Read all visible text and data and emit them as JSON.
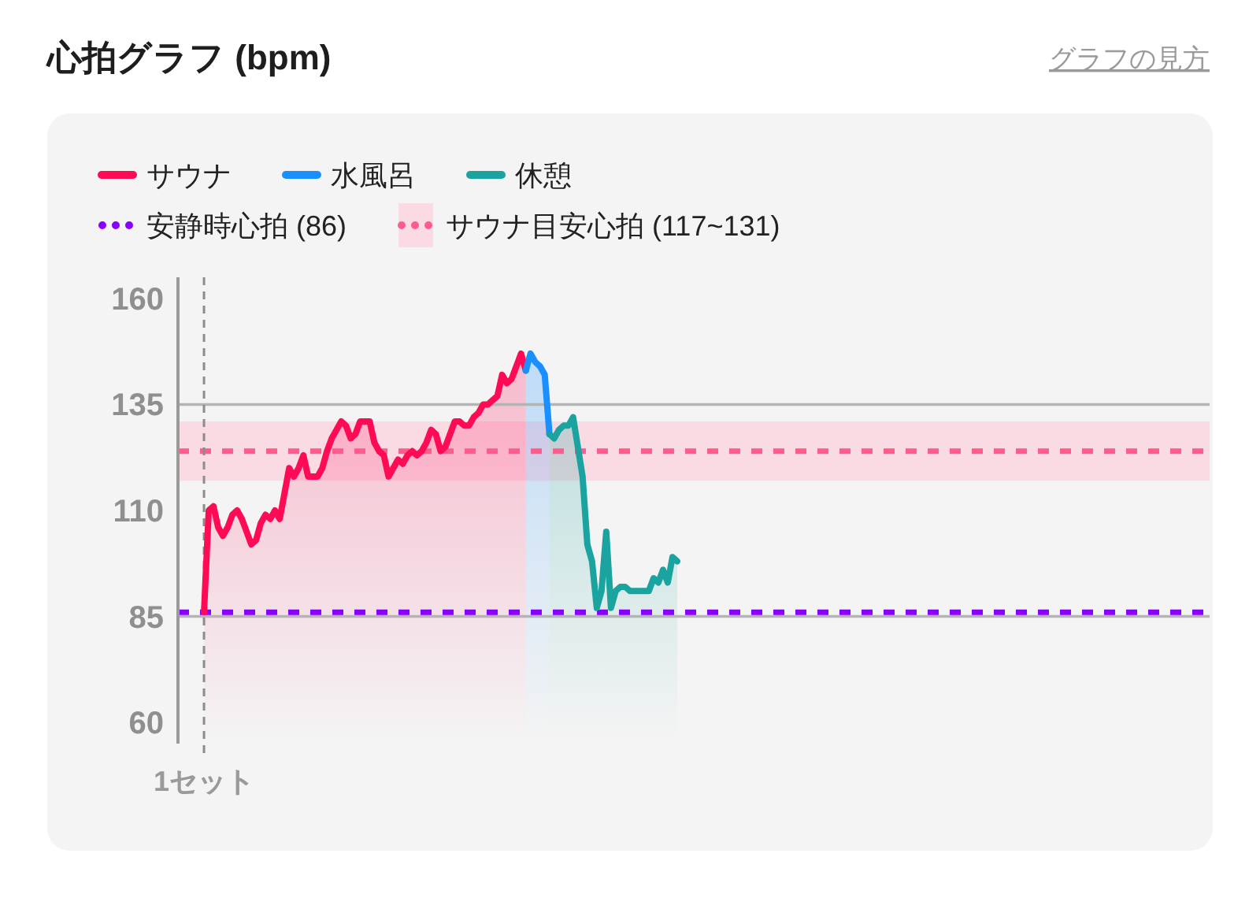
{
  "chart_data": {
    "type": "area",
    "title": "心拍グラフ (bpm)",
    "annotations": [
      "グラフの見方"
    ],
    "categories": [
      null,
      null,
      null,
      null,
      null,
      "1セット",
      null,
      null,
      null,
      null,
      null,
      null,
      null,
      null,
      null,
      null,
      null,
      null,
      null,
      null,
      null,
      null,
      null,
      null,
      null,
      null,
      null,
      null,
      null,
      null,
      null,
      null,
      null,
      null,
      null,
      null,
      null,
      null,
      null,
      null,
      null,
      null,
      null,
      null,
      null,
      null,
      null,
      null,
      null,
      null,
      null,
      null,
      null,
      null,
      null,
      null,
      null,
      null,
      null,
      null,
      null,
      null,
      null,
      null,
      null,
      null,
      null,
      null,
      null,
      null,
      null,
      null,
      null,
      null,
      null,
      null,
      null,
      null,
      null,
      null,
      null,
      null,
      null,
      null,
      null,
      null,
      null,
      null,
      null,
      null,
      null,
      null,
      null,
      null,
      null,
      null,
      null,
      null,
      null,
      null,
      null,
      null,
      null,
      null,
      null,
      null,
      null,
      null,
      null,
      null,
      null,
      null,
      null,
      null,
      null,
      null,
      null,
      null,
      null,
      null,
      null,
      null,
      null,
      null,
      null,
      null,
      null,
      null,
      null,
      null,
      null,
      null,
      null,
      null,
      null,
      null,
      null,
      null,
      null,
      null,
      null,
      null,
      null,
      null,
      null,
      null,
      null,
      null,
      null,
      null,
      null,
      null,
      null,
      null,
      null,
      null,
      null,
      null,
      null,
      null,
      null,
      null,
      null,
      null,
      null,
      null,
      null,
      null,
      null,
      null,
      null,
      null,
      null,
      null,
      null,
      null,
      null,
      null,
      null,
      null,
      null,
      null,
      null,
      null,
      null,
      null,
      null,
      null,
      null,
      null,
      null,
      null,
      null,
      null,
      null,
      null,
      null,
      null,
      null,
      null,
      null,
      null,
      null,
      null,
      null,
      null,
      null,
      null,
      null,
      null,
      null,
      null,
      null,
      null,
      null,
      null,
      null,
      null
    ],
    "series": [
      {
        "name": "サウナ",
        "color": "#ff0a55",
        "values": [
          null,
          null,
          null,
          null,
          null,
          86,
          110,
          111,
          106,
          104,
          106,
          109,
          110,
          108,
          105,
          102,
          103,
          107,
          109,
          108,
          110,
          108,
          114,
          120,
          118,
          120,
          123,
          118,
          118,
          118,
          120,
          124,
          127,
          129,
          131,
          130,
          127,
          128,
          131,
          131,
          131,
          126,
          124,
          123,
          118,
          120,
          122,
          121,
          123,
          124,
          123,
          124,
          126,
          129,
          128,
          124,
          125,
          128,
          131,
          131,
          130,
          130,
          132,
          133,
          135,
          135,
          136,
          137,
          142,
          140,
          141,
          144,
          147,
          143,
          null,
          null,
          null,
          null,
          null,
          null,
          null,
          null,
          null,
          null,
          null,
          null,
          null,
          null,
          null,
          null,
          null,
          null,
          null,
          null,
          null,
          null,
          null,
          null,
          null,
          null,
          null,
          null,
          null,
          null,
          null,
          null,
          null,
          null,
          null,
          null,
          null,
          null,
          null,
          null,
          null,
          null,
          null,
          null,
          null,
          null,
          null,
          null,
          null,
          null,
          null,
          null,
          null,
          null,
          null,
          null,
          null,
          null,
          null,
          null,
          null,
          null,
          null,
          null,
          null,
          null,
          null,
          null,
          null,
          null,
          null,
          null,
          null,
          null,
          null,
          null,
          null,
          null,
          null,
          null,
          null,
          null,
          null,
          null,
          null,
          null,
          null,
          null,
          null,
          null,
          null,
          null,
          null,
          null,
          null,
          null,
          null,
          null,
          null,
          null,
          null,
          null,
          null,
          null,
          null,
          null,
          null,
          null,
          null,
          null,
          null,
          null,
          null,
          null,
          null,
          null,
          null,
          null,
          null,
          null,
          null,
          null,
          null,
          null,
          null,
          null,
          null,
          null,
          null,
          null,
          null,
          null,
          null,
          null,
          null,
          null,
          null,
          null,
          null,
          null,
          null,
          null,
          null,
          null
        ]
      },
      {
        "name": "水風呂",
        "color": "#1a8fff",
        "values": [
          null,
          null,
          null,
          null,
          null,
          null,
          null,
          null,
          null,
          null,
          null,
          null,
          null,
          null,
          null,
          null,
          null,
          null,
          null,
          null,
          null,
          null,
          null,
          null,
          null,
          null,
          null,
          null,
          null,
          null,
          null,
          null,
          null,
          null,
          null,
          null,
          null,
          null,
          null,
          null,
          null,
          null,
          null,
          null,
          null,
          null,
          null,
          null,
          null,
          null,
          null,
          null,
          null,
          null,
          null,
          null,
          null,
          null,
          null,
          null,
          null,
          null,
          null,
          null,
          null,
          null,
          null,
          null,
          null,
          null,
          null,
          null,
          null,
          143,
          147,
          145,
          144,
          142,
          128,
          null,
          null,
          null,
          null,
          null,
          null,
          null,
          null,
          null,
          null,
          null,
          null,
          null,
          null,
          null,
          null,
          null,
          null,
          null,
          null,
          null,
          null,
          null,
          null,
          null,
          null,
          null,
          null,
          null,
          null,
          null,
          null,
          null,
          null,
          null,
          null,
          null,
          null,
          null,
          null,
          null,
          null,
          null,
          null,
          null,
          null,
          null,
          null,
          null,
          null,
          null,
          null,
          null,
          null,
          null,
          null,
          null,
          null,
          null,
          null,
          null,
          null,
          null,
          null,
          null,
          null,
          null,
          null,
          null,
          null,
          null,
          null,
          null,
          null,
          null,
          null,
          null,
          null,
          null,
          null,
          null,
          null,
          null,
          null,
          null,
          null,
          null,
          null,
          null,
          null,
          null,
          null,
          null,
          null,
          null,
          null,
          null,
          null,
          null,
          null,
          null,
          null,
          null,
          null,
          null,
          null,
          null,
          null,
          null,
          null,
          null,
          null,
          null,
          null,
          null,
          null,
          null,
          null,
          null,
          null,
          null,
          null,
          null,
          null,
          null,
          null,
          null,
          null,
          null,
          null,
          null,
          null,
          null,
          null,
          null,
          null,
          null,
          null,
          null
        ]
      },
      {
        "name": "休憩",
        "color": "#1aa39f",
        "values": [
          null,
          null,
          null,
          null,
          null,
          null,
          null,
          null,
          null,
          null,
          null,
          null,
          null,
          null,
          null,
          null,
          null,
          null,
          null,
          null,
          null,
          null,
          null,
          null,
          null,
          null,
          null,
          null,
          null,
          null,
          null,
          null,
          null,
          null,
          null,
          null,
          null,
          null,
          null,
          null,
          null,
          null,
          null,
          null,
          null,
          null,
          null,
          null,
          null,
          null,
          null,
          null,
          null,
          null,
          null,
          null,
          null,
          null,
          null,
          null,
          null,
          null,
          null,
          null,
          null,
          null,
          null,
          null,
          null,
          null,
          null,
          null,
          null,
          null,
          null,
          null,
          null,
          null,
          128,
          127,
          129,
          130,
          130,
          132,
          125,
          118,
          102,
          98,
          87,
          91,
          105,
          87,
          91,
          92,
          92,
          91,
          91,
          91,
          91,
          91,
          94,
          93,
          96,
          93,
          99,
          98,
          null,
          null,
          null,
          null,
          null,
          null,
          null,
          null,
          null,
          null,
          null,
          null,
          null,
          null,
          null,
          null,
          null,
          null,
          null,
          null,
          null,
          null,
          null,
          null,
          null,
          null,
          null,
          null,
          null,
          null,
          null,
          null,
          null,
          null,
          null,
          null,
          null,
          null,
          null,
          null,
          null,
          null,
          null,
          null,
          null,
          null,
          null,
          null,
          null,
          null,
          null,
          null,
          null,
          null,
          null,
          null,
          null,
          null,
          null,
          null,
          null,
          null,
          null,
          null,
          null,
          null,
          null,
          null,
          null,
          null,
          null,
          null,
          null,
          null,
          null,
          null,
          null,
          null,
          null,
          null,
          null,
          null,
          null,
          null,
          null,
          null,
          null,
          null,
          null,
          null,
          null,
          null,
          null,
          null,
          null,
          null,
          null,
          null,
          null,
          null,
          null,
          null,
          null,
          null,
          null,
          null,
          null,
          null,
          null,
          null,
          null,
          null
        ]
      }
    ],
    "ylim": [
      55,
      165
    ],
    "yticks": [
      60,
      85,
      110,
      135,
      160
    ],
    "ref_lines": [
      {
        "axis": "y",
        "value": 135,
        "color": "#b4b4b4"
      },
      {
        "axis": "y",
        "value": 85,
        "color": "#b4b4b4"
      },
      {
        "axis": "y",
        "value": 124,
        "color": "#ff5c8d",
        "line_style": "dashed"
      },
      {
        "axis": "y",
        "value": 86,
        "label": "安静時心拍 (86)",
        "color": "#8800ff",
        "line_style": "dashed"
      },
      {
        "axis": "x",
        "value": "1セット",
        "color": "#8c8c8c",
        "line_style": "dashed"
      }
    ],
    "bands": [
      {
        "axis": "y",
        "from": 117,
        "to": 131,
        "label": "サウナ目安心拍 (117~131)",
        "color": "#fadbe4"
      }
    ],
    "legend": "top left"
  }
}
